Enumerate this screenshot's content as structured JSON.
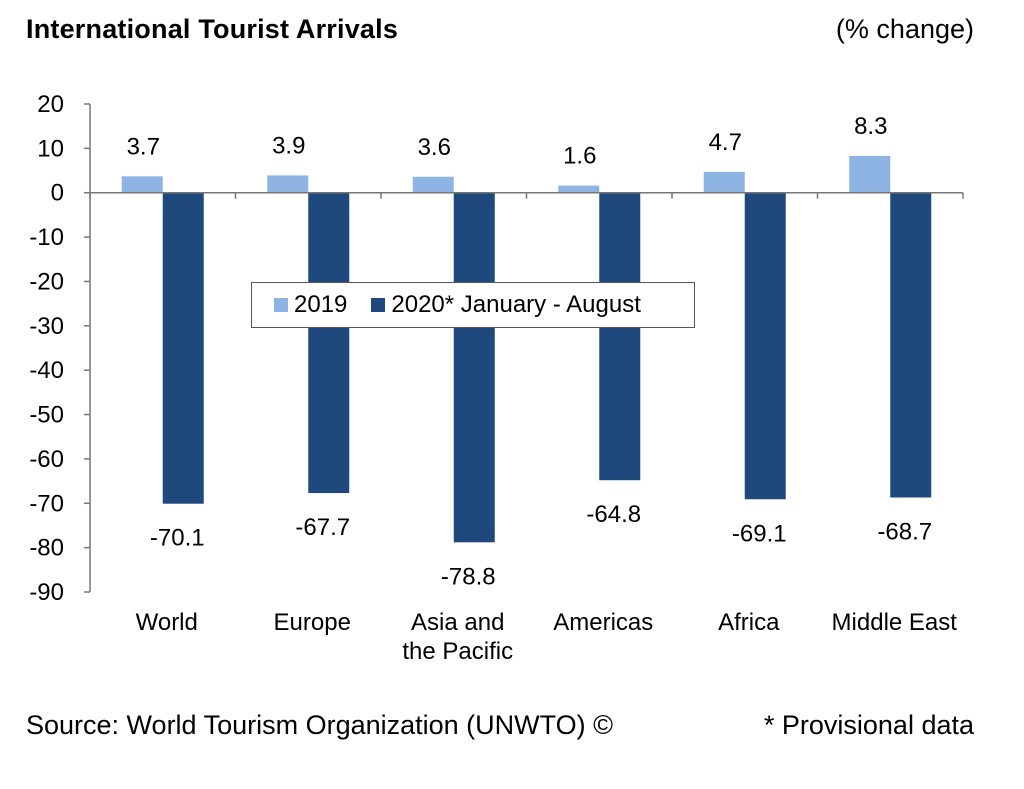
{
  "chart_data": {
    "type": "bar",
    "title": "International Tourist Arrivals",
    "unit_label": "(% change)",
    "categories": [
      "World",
      "Europe",
      "Asia and the Pacific",
      "Americas",
      "Africa",
      "Middle East"
    ],
    "category_lines": [
      [
        "World"
      ],
      [
        "Europe"
      ],
      [
        "Asia and",
        "the Pacific"
      ],
      [
        "Americas"
      ],
      [
        "Africa"
      ],
      [
        "Middle East"
      ]
    ],
    "series": [
      {
        "name": "2019",
        "values": [
          3.7,
          3.9,
          3.6,
          1.6,
          4.7,
          8.3
        ],
        "color": "#8DB4E2"
      },
      {
        "name": "2020* January - August",
        "values": [
          -70.1,
          -67.7,
          -78.8,
          -64.8,
          -69.1,
          -68.7
        ],
        "color": "#1F497D"
      }
    ],
    "ylim": [
      -90,
      20
    ],
    "yticks": [
      20,
      10,
      0,
      -10,
      -20,
      -30,
      -40,
      -50,
      -60,
      -70,
      -80,
      -90
    ],
    "xlabel": "",
    "ylabel": "",
    "legend_position": "center",
    "grid": false
  },
  "footer": {
    "source": "Source: World Tourism Organization (UNWTO) ©",
    "note": "* Provisional data"
  }
}
